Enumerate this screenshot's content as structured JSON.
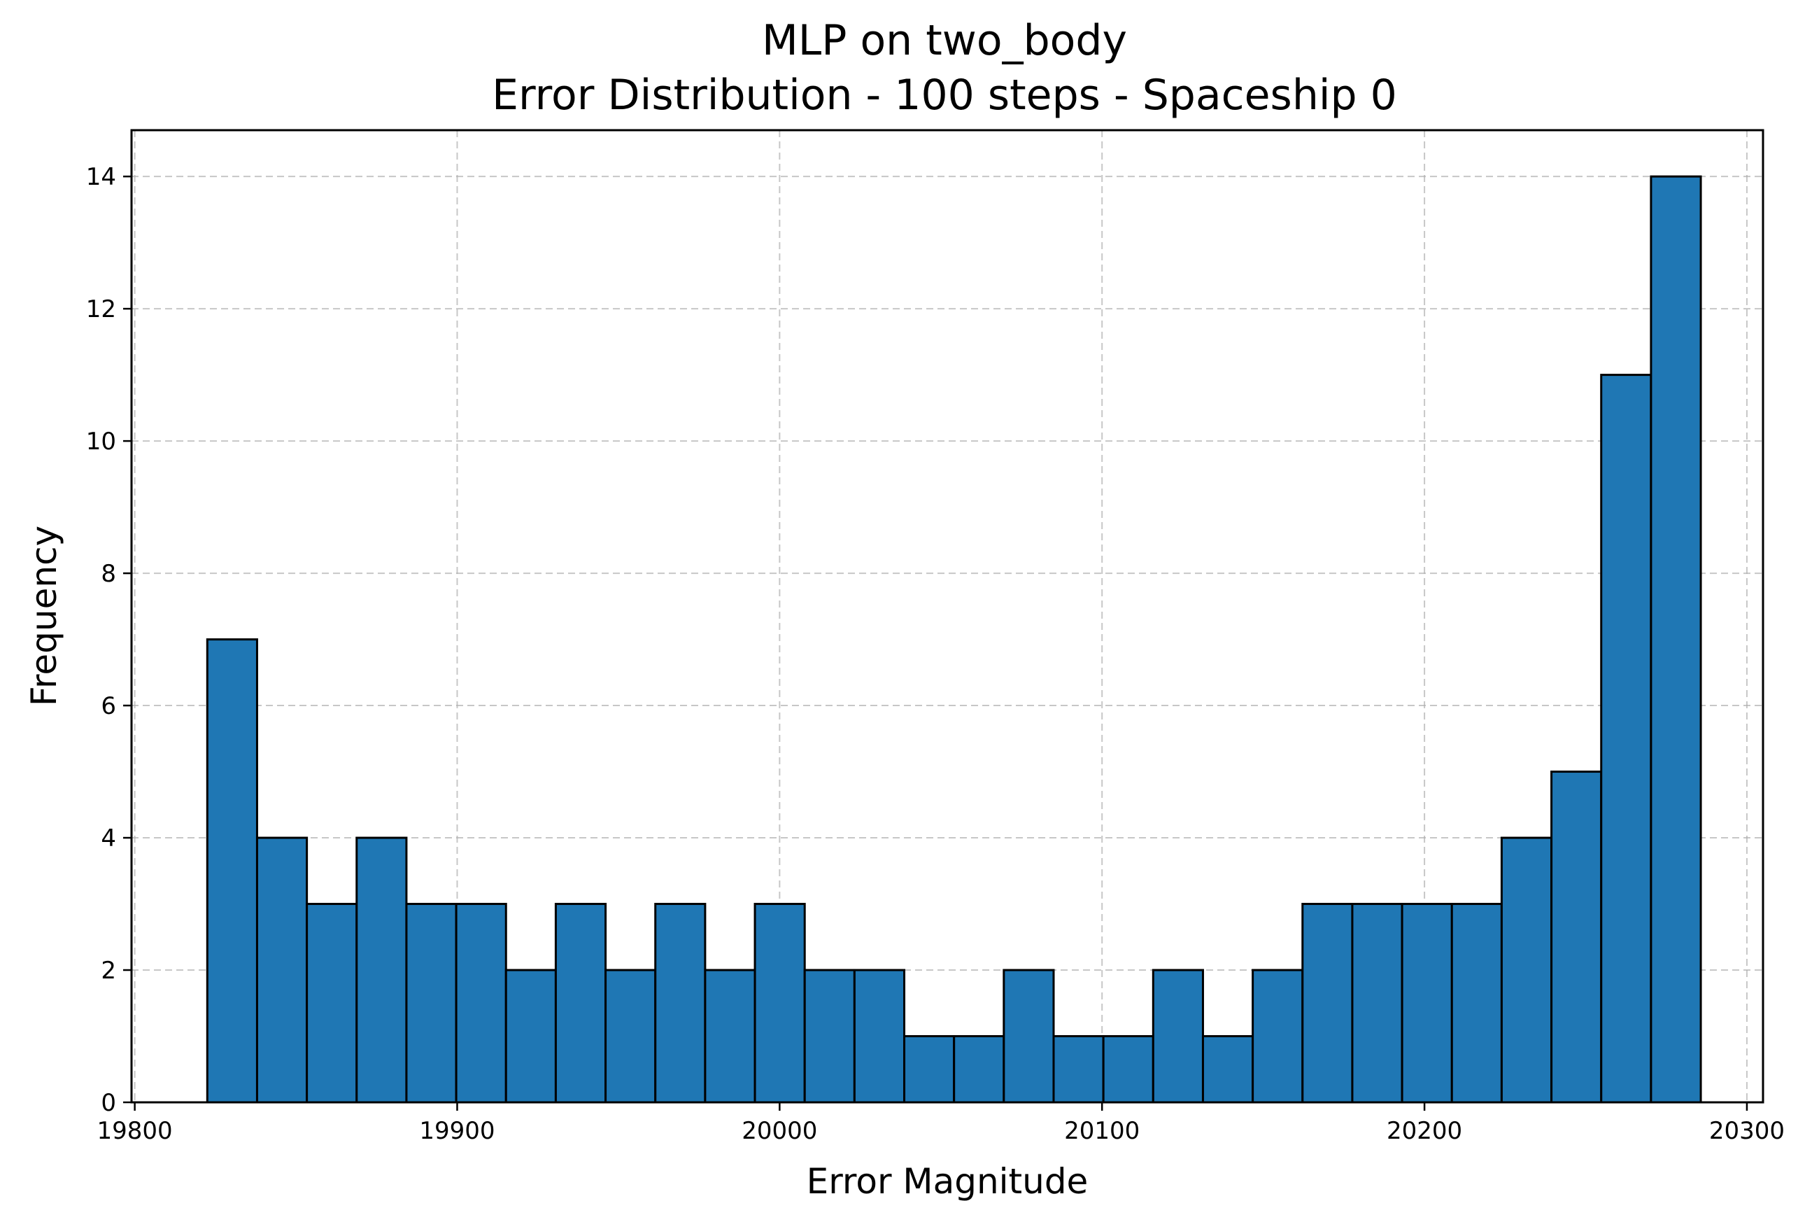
{
  "chart_data": {
    "type": "histogram",
    "title_line1": "MLP on two_body",
    "title_line2": "Error Distribution - 100 steps - Spaceship 0",
    "xlabel": "Error Magnitude",
    "ylabel": "Frequency",
    "xlim": [
      19799,
      20305
    ],
    "ylim": [
      0,
      14.7
    ],
    "xticks": [
      19800,
      19900,
      20000,
      20100,
      20200,
      20300
    ],
    "yticks": [
      0,
      2,
      4,
      6,
      8,
      10,
      12,
      14
    ],
    "bin_start": 19822.5,
    "bin_width": 15.44,
    "values": [
      7,
      4,
      3,
      4,
      3,
      3,
      2,
      3,
      2,
      3,
      2,
      3,
      2,
      2,
      1,
      1,
      2,
      1,
      1,
      2,
      1,
      2,
      3,
      3,
      3,
      3,
      4,
      5,
      11,
      14
    ],
    "bar_color": "#1f77b4",
    "edge_color": "#000000",
    "grid": true,
    "grid_style": "dashed",
    "legend": "none"
  }
}
